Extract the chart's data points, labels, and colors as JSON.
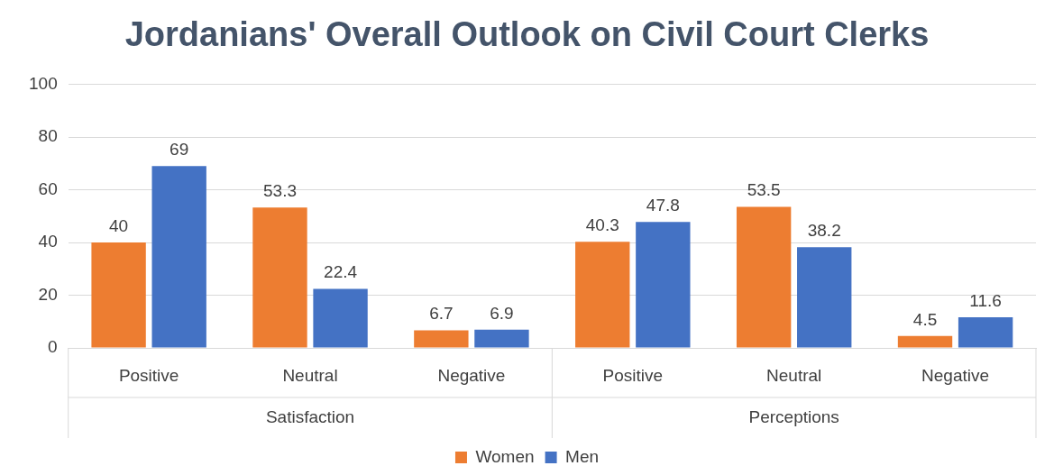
{
  "chart_data": {
    "type": "bar",
    "title": "Jordanians' Overall Outlook on Civil Court Clerks",
    "categories": [
      "Positive",
      "Neutral",
      "Negative",
      "Positive",
      "Neutral",
      "Negative"
    ],
    "series": [
      {
        "name": "Women",
        "color": "#ed7d31",
        "values": [
          40,
          53.3,
          6.7,
          40.3,
          53.5,
          4.5
        ]
      },
      {
        "name": "Men",
        "color": "#4472c4",
        "values": [
          69,
          22.4,
          6.9,
          47.8,
          38.2,
          11.6
        ]
      }
    ],
    "ylim": [
      0,
      100
    ],
    "yticks": [
      0,
      20,
      40,
      60,
      80,
      100
    ],
    "grid": "y",
    "legend": "bottom",
    "data_labels": true,
    "annotations": [
      "Satisfaction",
      "Perceptions"
    ]
  }
}
